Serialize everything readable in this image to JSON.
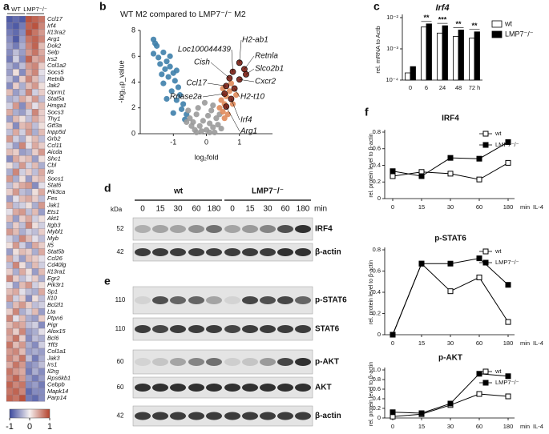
{
  "chart_data": [
    {
      "type": "heatmap",
      "panel": "a",
      "column_groups": [
        "WT",
        "LMP7⁻/⁻"
      ],
      "categories": [
        "Ccl17",
        "Irf4",
        "Il13ra2",
        "Arg1",
        "Dok2",
        "Selp",
        "Irs2",
        "Col1a2",
        "Socs5",
        "Retnlb",
        "Jak2",
        "Oprm1",
        "Stat5a",
        "Hmga1",
        "Socs3",
        "Thy1",
        "Gtf3a",
        "Inpp5d",
        "Grb2",
        "Ccl11",
        "Aicda",
        "Shc1",
        "Cbl",
        "Il6",
        "Socs1",
        "Stat6",
        "Pik3ca",
        "Fes",
        "Jak1",
        "Ets1",
        "Akt1",
        "Itgb3",
        "Mybl1",
        "Myb",
        "Il5",
        "Stat5b",
        "Ccl26",
        "Cd40lg",
        "Il13ra1",
        "Egr2",
        "Pik3r1",
        "Sp1",
        "Il10",
        "Bcl2l1",
        "Lta",
        "Ptpn6",
        "Pigr",
        "Alox15",
        "Bcl6",
        "Tff3",
        "Col1a1",
        "Jak3",
        "Irs1",
        "Il2rg",
        "Rps6kb1",
        "Cebpb",
        "Mapk14",
        "Parp14"
      ],
      "values": [
        [
          -0.9,
          -0.8,
          -0.9,
          0.9,
          0.8,
          0.7
        ],
        [
          -0.8,
          -0.9,
          -0.7,
          0.8,
          0.9,
          0.6
        ],
        [
          -0.7,
          -0.8,
          -0.6,
          0.9,
          0.7,
          0.5
        ],
        [
          -0.6,
          -0.9,
          -0.5,
          0.7,
          0.8,
          0.6
        ],
        [
          -0.5,
          -0.7,
          -0.4,
          0.6,
          0.8,
          0.3
        ],
        [
          -0.6,
          -0.3,
          -0.5,
          0.5,
          0.7,
          0.4
        ],
        [
          -0.7,
          -0.2,
          -0.6,
          0.8,
          0.4,
          0.5
        ],
        [
          -0.4,
          -0.6,
          -0.3,
          0.5,
          0.6,
          0.2
        ],
        [
          -0.5,
          0.1,
          -0.6,
          0.4,
          0.6,
          -0.1
        ],
        [
          -0.3,
          -0.6,
          0.2,
          0.6,
          0.3,
          -0.2
        ],
        [
          -0.6,
          0.2,
          -0.4,
          0.3,
          0.5,
          0.1
        ],
        [
          0.3,
          -0.5,
          -0.3,
          0.6,
          -0.2,
          0.2
        ],
        [
          -0.4,
          -0.3,
          0.4,
          0.2,
          0.5,
          -0.3
        ],
        [
          -0.2,
          0.5,
          -0.6,
          0.4,
          -0.1,
          0.3
        ],
        [
          0.4,
          -0.4,
          -0.5,
          -0.2,
          0.6,
          0.2
        ],
        [
          -0.5,
          0.3,
          0.1,
          -0.3,
          0.4,
          0.2
        ],
        [
          0.2,
          -0.6,
          0.3,
          0.4,
          -0.3,
          0.1
        ],
        [
          -0.3,
          0.4,
          -0.2,
          0.5,
          -0.4,
          0.3
        ],
        [
          0.5,
          -0.2,
          -0.4,
          0.1,
          0.3,
          -0.3
        ],
        [
          -0.2,
          -0.5,
          0.6,
          -0.1,
          0.4,
          0.2
        ],
        [
          0.3,
          0.2,
          -0.5,
          -0.4,
          0.2,
          0.5
        ],
        [
          -0.6,
          0.4,
          0.2,
          0.3,
          -0.5,
          0.1
        ],
        [
          0.1,
          -0.3,
          0.5,
          -0.2,
          0.3,
          -0.4
        ],
        [
          -0.4,
          0.6,
          -0.2,
          0.2,
          -0.3,
          0.4
        ],
        [
          0.5,
          -0.4,
          0.1,
          -0.5,
          0.2,
          0.3
        ],
        [
          -0.3,
          0.2,
          0.4,
          0.5,
          -0.6,
          -0.1
        ],
        [
          0.2,
          0.5,
          -0.3,
          -0.4,
          0.1,
          0.4
        ],
        [
          -0.5,
          -0.1,
          0.3,
          0.4,
          0.2,
          -0.3
        ],
        [
          0.4,
          -0.3,
          -0.2,
          0.1,
          -0.4,
          0.5
        ],
        [
          -0.1,
          0.4,
          0.5,
          -0.3,
          0.3,
          -0.5
        ],
        [
          0.3,
          -0.5,
          0.2,
          0.4,
          -0.2,
          0.1
        ],
        [
          -0.4,
          0.2,
          -0.3,
          0.6,
          0.1,
          -0.2
        ],
        [
          0.5,
          0.3,
          -0.4,
          -0.2,
          -0.3,
          0.2
        ],
        [
          -0.2,
          -0.4,
          0.6,
          0.3,
          -0.1,
          -0.3
        ],
        [
          0.1,
          0.5,
          -0.2,
          -0.5,
          0.4,
          0.2
        ],
        [
          -0.5,
          0.1,
          0.3,
          0.2,
          -0.4,
          0.4
        ],
        [
          0.4,
          -0.2,
          -0.5,
          0.3,
          0.2,
          -0.1
        ],
        [
          -0.3,
          0.6,
          0.1,
          -0.4,
          0.3,
          -0.2
        ],
        [
          0.2,
          -0.4,
          0.4,
          0.1,
          -0.5,
          0.3
        ],
        [
          0.6,
          0.2,
          -0.3,
          -0.1,
          0.2,
          -0.4
        ],
        [
          -0.1,
          -0.5,
          0.3,
          0.5,
          -0.2,
          0.1
        ],
        [
          0.3,
          0.4,
          -0.1,
          -0.3,
          -0.4,
          0.4
        ],
        [
          0.5,
          -0.2,
          0.2,
          -0.6,
          0.1,
          -0.3
        ],
        [
          -0.4,
          0.3,
          0.5,
          0.2,
          -0.3,
          -0.2
        ],
        [
          0.2,
          0.6,
          -0.4,
          -0.2,
          0.3,
          -0.5
        ],
        [
          0.6,
          -0.1,
          0.3,
          -0.4,
          -0.5,
          0.2
        ],
        [
          0.3,
          0.5,
          0.4,
          -0.3,
          -0.2,
          -0.6
        ],
        [
          0.5,
          0.2,
          0.6,
          -0.5,
          -0.4,
          -0.1
        ],
        [
          0.4,
          0.7,
          0.2,
          -0.6,
          -0.3,
          -0.4
        ],
        [
          0.7,
          0.3,
          0.5,
          -0.4,
          -0.6,
          -0.2
        ],
        [
          0.5,
          0.6,
          0.3,
          -0.5,
          -0.4,
          -0.5
        ],
        [
          0.6,
          0.4,
          0.7,
          -0.3,
          -0.7,
          -0.4
        ],
        [
          0.4,
          0.7,
          0.5,
          -0.6,
          -0.5,
          -0.3
        ],
        [
          0.7,
          0.5,
          0.4,
          -0.7,
          -0.4,
          -0.6
        ],
        [
          0.6,
          0.8,
          0.5,
          -0.5,
          -0.7,
          -0.5
        ],
        [
          0.8,
          0.6,
          0.7,
          -0.6,
          -0.5,
          -0.7
        ],
        [
          0.7,
          0.8,
          0.6,
          -0.8,
          -0.6,
          -0.6
        ],
        [
          0.8,
          0.7,
          0.9,
          -0.7,
          -0.8,
          -0.6
        ]
      ],
      "zlim": [
        -1,
        1
      ],
      "colorscale": [
        "#3c4a9e",
        "#f5f0f0",
        "#b3412b"
      ],
      "colorbar_ticks": [
        -1,
        0,
        1
      ]
    },
    {
      "type": "scatter",
      "panel": "b",
      "title": "WT M2 compared to LMP7⁻/⁻ M2",
      "xlabel": "log₂fold",
      "ylabel": "-log₁₀p_value",
      "xlim": [
        -2,
        2
      ],
      "ylim": [
        0,
        8
      ],
      "xticks": [
        -1,
        0,
        1
      ],
      "yticks": [
        0,
        2,
        4,
        6,
        8
      ],
      "series": [
        {
          "color": "#3e7fab",
          "x": [
            -1.6,
            -1.55,
            -1.5,
            -1.6,
            -1.45,
            -1.3,
            -1.4,
            -1.2,
            -1.25,
            -1.1,
            -1.0,
            -1.15,
            -0.95,
            -1.3,
            -0.85,
            -1.05,
            -0.8,
            -0.9,
            -1.2,
            -0.7,
            -0.75,
            -1.0,
            -0.6,
            -0.65,
            -1.1,
            -0.9,
            -1.35
          ],
          "values": [
            7.3,
            7.0,
            6.8,
            6.2,
            5.9,
            6.3,
            5.4,
            5.6,
            5.0,
            5.2,
            4.7,
            4.4,
            4.1,
            3.9,
            3.6,
            3.3,
            3.0,
            2.6,
            2.7,
            2.3,
            1.9,
            1.6,
            1.5,
            1.1,
            6.0,
            4.9,
            4.6
          ]
        },
        {
          "color": "#9a9a9a",
          "x": [
            -0.5,
            -0.4,
            -0.3,
            -0.2,
            -0.1,
            0,
            0.1,
            0.2,
            0.3,
            -0.35,
            -0.15,
            0.05,
            0.25,
            0.35,
            -0.45,
            -0.25,
            0.15,
            -0.55,
            0.4,
            -0.05,
            0.1,
            -0.3,
            0.45,
            -0.6,
            0.2
          ],
          "values": [
            1.2,
            0.9,
            1.5,
            0.6,
            1.0,
            0.3,
            0.8,
            0.5,
            1.2,
            0.3,
            0.2,
            1.4,
            0.1,
            0.7,
            0.6,
            2.0,
            1.8,
            1.8,
            1.5,
            2.4,
            0.1,
            0.1,
            0.4,
            0.9,
            2.2
          ]
        },
        {
          "color": "#e08a5a",
          "x": [
            0.5,
            0.55,
            0.6,
            0.45,
            0.7,
            0.5,
            0.65,
            0.8,
            0.9,
            0.55,
            0.4,
            0.75
          ],
          "values": [
            1.7,
            2.3,
            2.9,
            2.6,
            3.3,
            3.5,
            1.5,
            2.3,
            3.0,
            1.2,
            2.0,
            3.9
          ]
        },
        {
          "color": "#7a1f14",
          "x": [
            1.0,
            1.15,
            1.2,
            1.0,
            0.85,
            0.75,
            0.6,
            0.8,
            0.7,
            0.6,
            0.55
          ],
          "values": [
            5.5,
            5.0,
            4.6,
            4.2,
            3.5,
            2.7,
            2.1,
            4.8,
            4.3,
            3.7,
            3.1
          ],
          "labels": [
            "H2-ab1",
            "Retnla",
            "Slco2b1",
            "Cxcr2",
            "H2-t10",
            "Irf4",
            "Arg1",
            "Loc100044439",
            "Cish",
            "Ccl17",
            "Rnase2a"
          ]
        }
      ]
    },
    {
      "type": "bar",
      "panel": "c",
      "title": "Irf4",
      "ylabel": "rel. mRNA to Actb",
      "log_scale": true,
      "categories": [
        "0",
        "6",
        "24",
        "48",
        "72 h"
      ],
      "ylim": [
        0.0001,
        0.01
      ],
      "yticks": [
        {
          "value": 0.0001,
          "label": "10⁻⁴"
        },
        {
          "value": 0.001,
          "label": "10⁻³"
        },
        {
          "value": 0.01,
          "label": "10⁻²"
        }
      ],
      "series": [
        {
          "name": "wt",
          "color": "#ffffff",
          "values": [
            0.00017,
            0.005,
            0.0032,
            0.0025,
            0.0022
          ]
        },
        {
          "name": "LMP7⁻/⁻",
          "color": "#000000",
          "values": [
            0.00027,
            0.0063,
            0.0055,
            0.004,
            0.0035
          ]
        }
      ],
      "significance": [
        null,
        "**",
        "***",
        "**",
        "**"
      ]
    },
    {
      "type": "line",
      "panel": "f",
      "title": "IRF4",
      "ylabel": "rel. protein level to β-actin",
      "x_unit": "min",
      "xlabel": "IL-4",
      "categories": [
        "0",
        "15",
        "30",
        "60",
        "180"
      ],
      "ylim": [
        0,
        0.8
      ],
      "yticks": [
        0,
        0.2,
        0.4,
        0.6,
        0.8
      ],
      "series": [
        {
          "name": "wt",
          "color": "#000000",
          "marker_fill": "#ffffff",
          "values": [
            0.27,
            0.32,
            0.3,
            0.23,
            0.43
          ]
        },
        {
          "name": "LMP7⁻/⁻",
          "color": "#000000",
          "marker_fill": "#000000",
          "values": [
            0.33,
            0.27,
            0.49,
            0.48,
            0.68
          ]
        }
      ]
    },
    {
      "type": "line",
      "title": "p-STAT6",
      "ylabel": "rel. protein level to β-actin",
      "x_unit": "min",
      "xlabel": "IL-4",
      "categories": [
        "0",
        "15",
        "30",
        "60",
        "180"
      ],
      "ylim": [
        0,
        0.8
      ],
      "yticks": [
        0,
        0.2,
        0.4,
        0.6,
        0.8
      ],
      "series": [
        {
          "name": "wt",
          "color": "#000000",
          "marker_fill": "#ffffff",
          "values": [
            0,
            0.67,
            0.41,
            0.54,
            0.12
          ]
        },
        {
          "name": "LMP7⁻/⁻",
          "color": "#000000",
          "marker_fill": "#000000",
          "values": [
            0,
            0.67,
            0.67,
            0.72,
            0.47
          ]
        }
      ]
    },
    {
      "type": "line",
      "title": "p-AKT",
      "ylabel": "rel. protein level to β-actin",
      "x_unit": "min",
      "xlabel": "IL-4",
      "categories": [
        "0",
        "15",
        "30",
        "60",
        "180"
      ],
      "ylim": [
        0,
        1
      ],
      "yticks": [
        0,
        0.2,
        0.4,
        0.6,
        0.8,
        {
          "value": 1,
          "label": "1.0"
        }
      ],
      "series": [
        {
          "name": "wt",
          "color": "#000000",
          "marker_fill": "#ffffff",
          "values": [
            0.03,
            0.08,
            0.27,
            0.5,
            0.45
          ]
        },
        {
          "name": "LMP7⁻/⁻",
          "color": "#000000",
          "marker_fill": "#000000",
          "values": [
            0.12,
            0.1,
            0.3,
            0.92,
            0.87
          ]
        }
      ]
    }
  ],
  "blots": [
    {
      "panel": "d",
      "groups": [
        "wt",
        "LMP7⁻/⁻"
      ],
      "lanes": [
        "0",
        "15",
        "30",
        "60",
        "180",
        "0",
        "15",
        "30",
        "60",
        "180"
      ],
      "unit": "min",
      "mass_unit": "kDa",
      "rows": [
        {
          "kda": 52,
          "protein": "IRF4"
        },
        {
          "kda": 42,
          "protein": "β-actin"
        }
      ]
    },
    {
      "panel": "e",
      "rows": [
        {
          "kda": 110,
          "protein": "p-STAT6"
        },
        {
          "kda": 110,
          "protein": "STAT6"
        },
        {
          "kda": 60,
          "protein": "p-AKT"
        },
        {
          "kda": 60,
          "protein": "AKT"
        },
        {
          "kda": 42,
          "protein": "β-actin"
        }
      ]
    }
  ]
}
